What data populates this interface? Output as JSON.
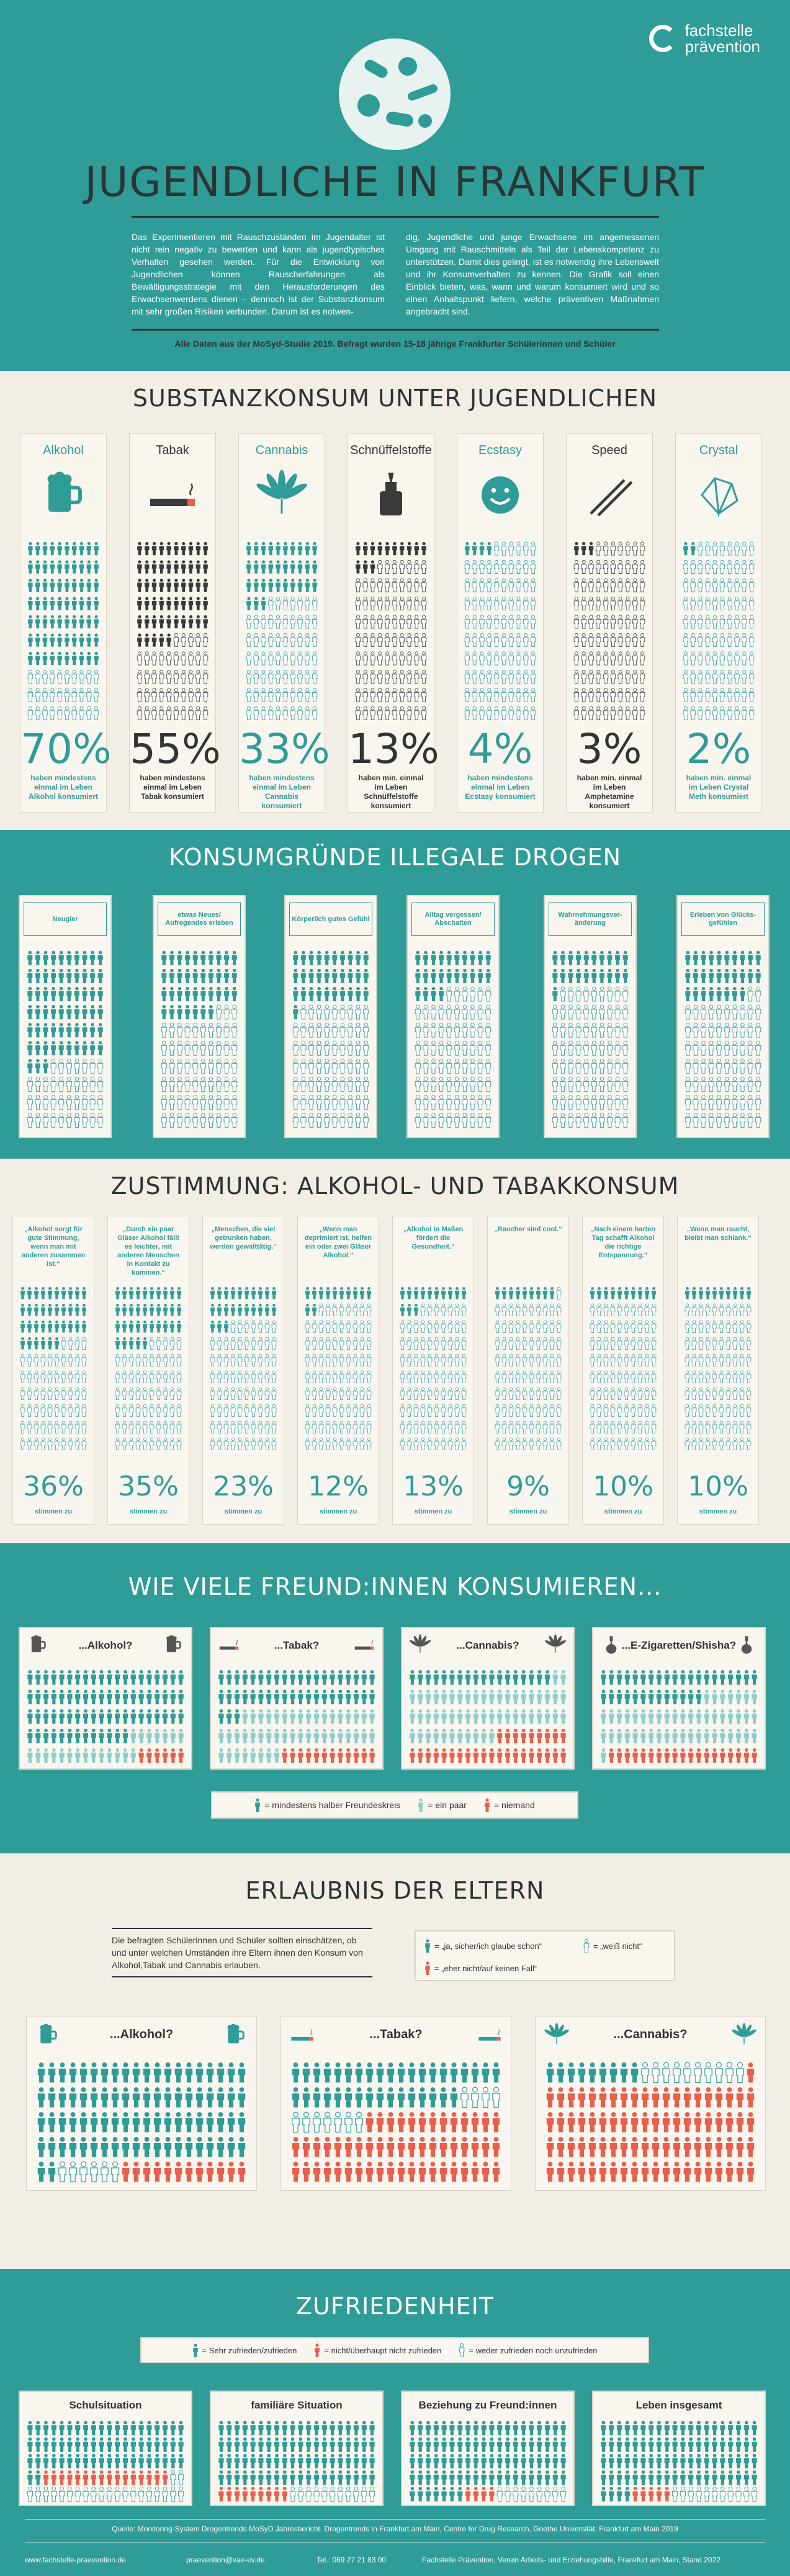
{
  "colors": {
    "teal": "#2f9c97",
    "dark": "#3a3a3a",
    "red": "#e8604c",
    "light": "#bfe0de",
    "cream": "#f3eee5"
  },
  "header": {
    "logo_line1": "fachstelle",
    "logo_line2": "prävention",
    "title": "JUGENDLICHE IN FRANKFURT",
    "intro_left": "Das Experimentieren mit Rauschzuständen im Jugendalter ist nicht rein negativ zu bewerten und kann als jugendtypisches Verhalten gesehen werden. Für die Entwicklung von Jugendlichen können Rauscherfahrungen als Bewältigungsstrategie mit den Herausforderungen des Erwachsenwerdens dienen – dennoch ist der Substanzkonsum mit sehr großen Risiken verbunden. Darum ist es notwen-",
    "intro_right": "dig, Jugendliche und junge Erwachsene im angemessenen Umgang mit Rauschmitteln als Teil der Lebenskompetenz zu unterstützen. Damit dies gelingt, ist es notwendig ihre Lebenswelt und ihr Konsumverhalten zu kennen. Die Grafik soll einen Einblick bieten, was, wann und warum konsumiert wird und so einen Anhaltspunkt liefern, welche präventiven Maßnahmen angebracht sind.",
    "source": "Alle Daten aus der MoSyd-Studie 2019. Befragt wurden 15-18 jährige Frankfurter Schülerinnen und Schüler"
  },
  "substance": {
    "title": "SUBSTANZKONSUM UNTER JUGENDLICHEN",
    "items": [
      {
        "label": "Alkohol",
        "icon": "beer-mug-icon",
        "pct": "70%",
        "value": 70,
        "color": "teal",
        "desc": "haben mindestens einmal im Leben Alkohol konsumiert"
      },
      {
        "label": "Tabak",
        "icon": "cigarette-icon",
        "pct": "55%",
        "value": 55,
        "color": "dark",
        "desc": "haben mindestens einmal im Leben Tabak konsumiert"
      },
      {
        "label": "Cannabis",
        "icon": "cannabis-leaf-icon",
        "pct": "33%",
        "value": 33,
        "color": "teal",
        "desc": "haben mindestens einmal im Leben Cannabis konsumiert"
      },
      {
        "label": "Schnüffelstoffe",
        "icon": "glue-bottle-icon",
        "pct": "13%",
        "value": 13,
        "color": "dark",
        "desc": "haben min. einmal im Leben Schnüffelstoffe konsumiert"
      },
      {
        "label": "Ecstasy",
        "icon": "smiley-pill-icon",
        "pct": "4%",
        "value": 4,
        "color": "teal",
        "desc": "haben mindestens einmal im Leben Ecstasy konsumiert"
      },
      {
        "label": "Speed",
        "icon": "powder-lines-icon",
        "pct": "3%",
        "value": 3,
        "color": "dark",
        "desc": "haben min. einmal im Leben Amphetamine konsumiert"
      },
      {
        "label": "Crystal",
        "icon": "crystal-icon",
        "pct": "2%",
        "value": 2,
        "color": "teal",
        "desc": "haben min. einmal im Leben Crystal Meth konsumiert"
      }
    ]
  },
  "reasons": {
    "title": "KONSUMGRÜNDE ILLEGALE DROGEN",
    "items": [
      {
        "label": "Neugier",
        "value": 63
      },
      {
        "label": "etwas Neues/ Aufregendes erleben",
        "value": 37
      },
      {
        "label": "Körperlich gutes Gefühl",
        "value": 31
      },
      {
        "label": "Alltag vergessen/ Abschalten",
        "value": 24
      },
      {
        "label": "Wahrnehmungsver- änderung",
        "value": 21
      },
      {
        "label": "Erleben von Glücks- gefühlen",
        "value": 28
      }
    ]
  },
  "agreement": {
    "title": "ZUSTIMMUNG: ALKOHOL- UND TABAKKONSUM",
    "items": [
      {
        "quote": "„Alkohol sorgt für gute Stimmung, wenn man mit anderen zusammen ist.“",
        "pct": "36%",
        "value": 36
      },
      {
        "quote": "„Durch ein paar Gläser Alkohol fällt es leichter, mit anderen Menschen in Kontakt zu kommen.“",
        "pct": "35%",
        "value": 35
      },
      {
        "quote": "„Menschen, die viel getrunken haben, werden gewalttätig.“",
        "pct": "23%",
        "value": 23
      },
      {
        "quote": "„Wenn man deprimiert ist, helfen ein oder zwei Gläser Alkohol.“",
        "pct": "12%",
        "value": 12
      },
      {
        "quote": "„Alkohol in Maßen fördert die Gesundheit.“",
        "pct": "13%",
        "value": 13
      },
      {
        "quote": "„Raucher sind cool.“",
        "pct": "9%",
        "value": 9
      },
      {
        "quote": "„Nach einem harten Tag schafft Alkohol die richtige Entspannung.“",
        "pct": "10%",
        "value": 10
      },
      {
        "quote": "„Wenn man raucht, bleibt man schlank.“",
        "pct": "10%",
        "value": 10
      }
    ],
    "caption": "stimmen zu"
  },
  "friends": {
    "title": "WIE VIELE FREUND:INNEN KONSUMIEREN...",
    "items": [
      {
        "label": "...Alkohol?",
        "icon": "beer-mug-icon",
        "most": 73,
        "few": 21,
        "none": 6
      },
      {
        "label": "...Tabak?",
        "icon": "cigarette-icon",
        "most": 43,
        "few": 45,
        "none": 12
      },
      {
        "label": "...Cannabis?",
        "icon": "cannabis-leaf-icon",
        "most": 18,
        "few": 53,
        "none": 29
      },
      {
        "label": "...E-Zigaretten/Shisha?",
        "icon": "hookah-icon",
        "most": 33,
        "few": 48,
        "none": 19
      }
    ],
    "legend": [
      "= mindestens halber Freundeskreis",
      "= ein paar",
      "= niemand"
    ]
  },
  "parents": {
    "title": "ERLAUBNIS DER ELTERN",
    "intro": "Die befragten Schülerinnen und Schüler sollten einschätzen, ob und unter welchen Umständen ihre Eltern ihnen den Konsum von Alkohol,Tabak und Cannabis erlauben.",
    "legend": [
      "= „ja, sicher/ich glaube schon“",
      "= „weiß nicht“",
      "= „eher nicht/auf keinen Fall“"
    ],
    "items": [
      {
        "label": "...Alkohol?",
        "icon": "beer-mug-icon",
        "yes": 82,
        "unsure": 6,
        "no": 12
      },
      {
        "label": "...Tabak?",
        "icon": "cigarette-icon",
        "yes": 36,
        "unsure": 11,
        "no": 53
      },
      {
        "label": "...Cannabis?",
        "icon": "cannabis-leaf-icon",
        "yes": 9,
        "unsure": 10,
        "no": 81
      }
    ]
  },
  "satisfaction": {
    "title": "ZUFRIEDENHEIT",
    "legend": [
      "= Sehr zufrieden/zufrieden",
      "= nicht/überhaupt nicht zufrieden",
      "= weder zufrieden noch unzufrieden"
    ],
    "items": [
      {
        "label": "Schulsituation",
        "sat": 62,
        "unsat": 16,
        "neutral": 22
      },
      {
        "label": "familiäre Situation",
        "sat": 80,
        "unsat": 9,
        "neutral": 11
      },
      {
        "label": "Beziehung zu Freund:innen",
        "sat": 87,
        "unsat": 4,
        "neutral": 9
      },
      {
        "label": "Leben insgesamt",
        "sat": 84,
        "unsat": 5,
        "neutral": 11
      }
    ]
  },
  "footer": {
    "source": "Quelle: Monitoring-System Drogentrends MoSyD Jahresbericht. Drogentrends in Frankfurt am Main, Centre for Drug Research, Goethe Universität, Frankfurt am Main 2019",
    "web": "www.fachstelle-praevention.de",
    "mail": "praevention@vae-ev.de",
    "tel": "Tel.: 069 27 21 83 00",
    "org": "Fachstelle Prävention, Verein Arbeits- und Erziehungshilfe, Frankfurt am Main, Stand 2022"
  }
}
